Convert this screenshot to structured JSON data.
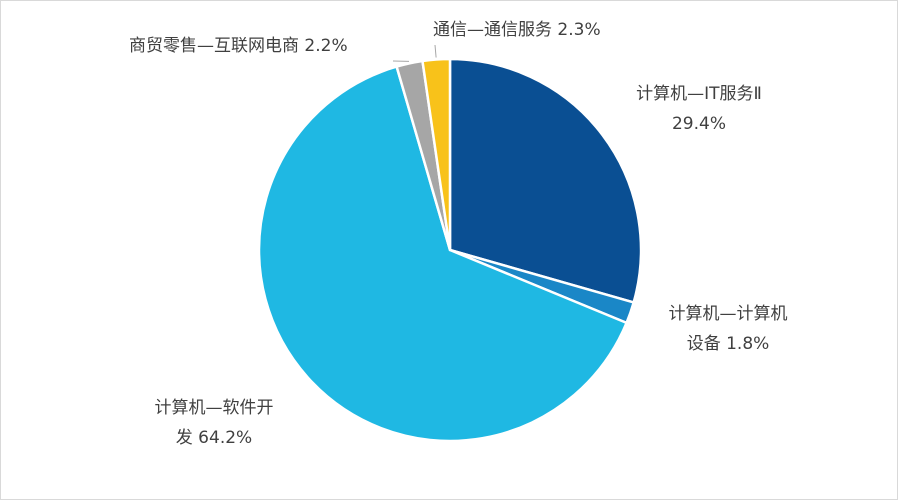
{
  "chart_data": {
    "type": "pie",
    "title": "",
    "slices": [
      {
        "name": "计算机—IT服务Ⅱ",
        "value": 29.4,
        "label_lines": [
          "计算机—IT服务Ⅱ",
          "29.4%"
        ],
        "color": "#0a4f93"
      },
      {
        "name": "计算机—计算机设备",
        "value": 1.8,
        "label_lines": [
          "计算机—计算机",
          "设备 1.8%"
        ],
        "color": "#1a87c7"
      },
      {
        "name": "计算机—软件开发",
        "value": 64.2,
        "label_lines": [
          "计算机—软件开",
          "发 64.2%"
        ],
        "color": "#1fb8e3"
      },
      {
        "name": "商贸零售—互联网电商",
        "value": 2.2,
        "label_lines": [
          "商贸零售—互联网电商 2.2%"
        ],
        "color": "#a6a6a6"
      },
      {
        "name": "通信—通信服务",
        "value": 2.3,
        "label_lines": [
          "通信—通信服务 2.3%"
        ],
        "color": "#f8c21a"
      }
    ],
    "legend": "none"
  }
}
